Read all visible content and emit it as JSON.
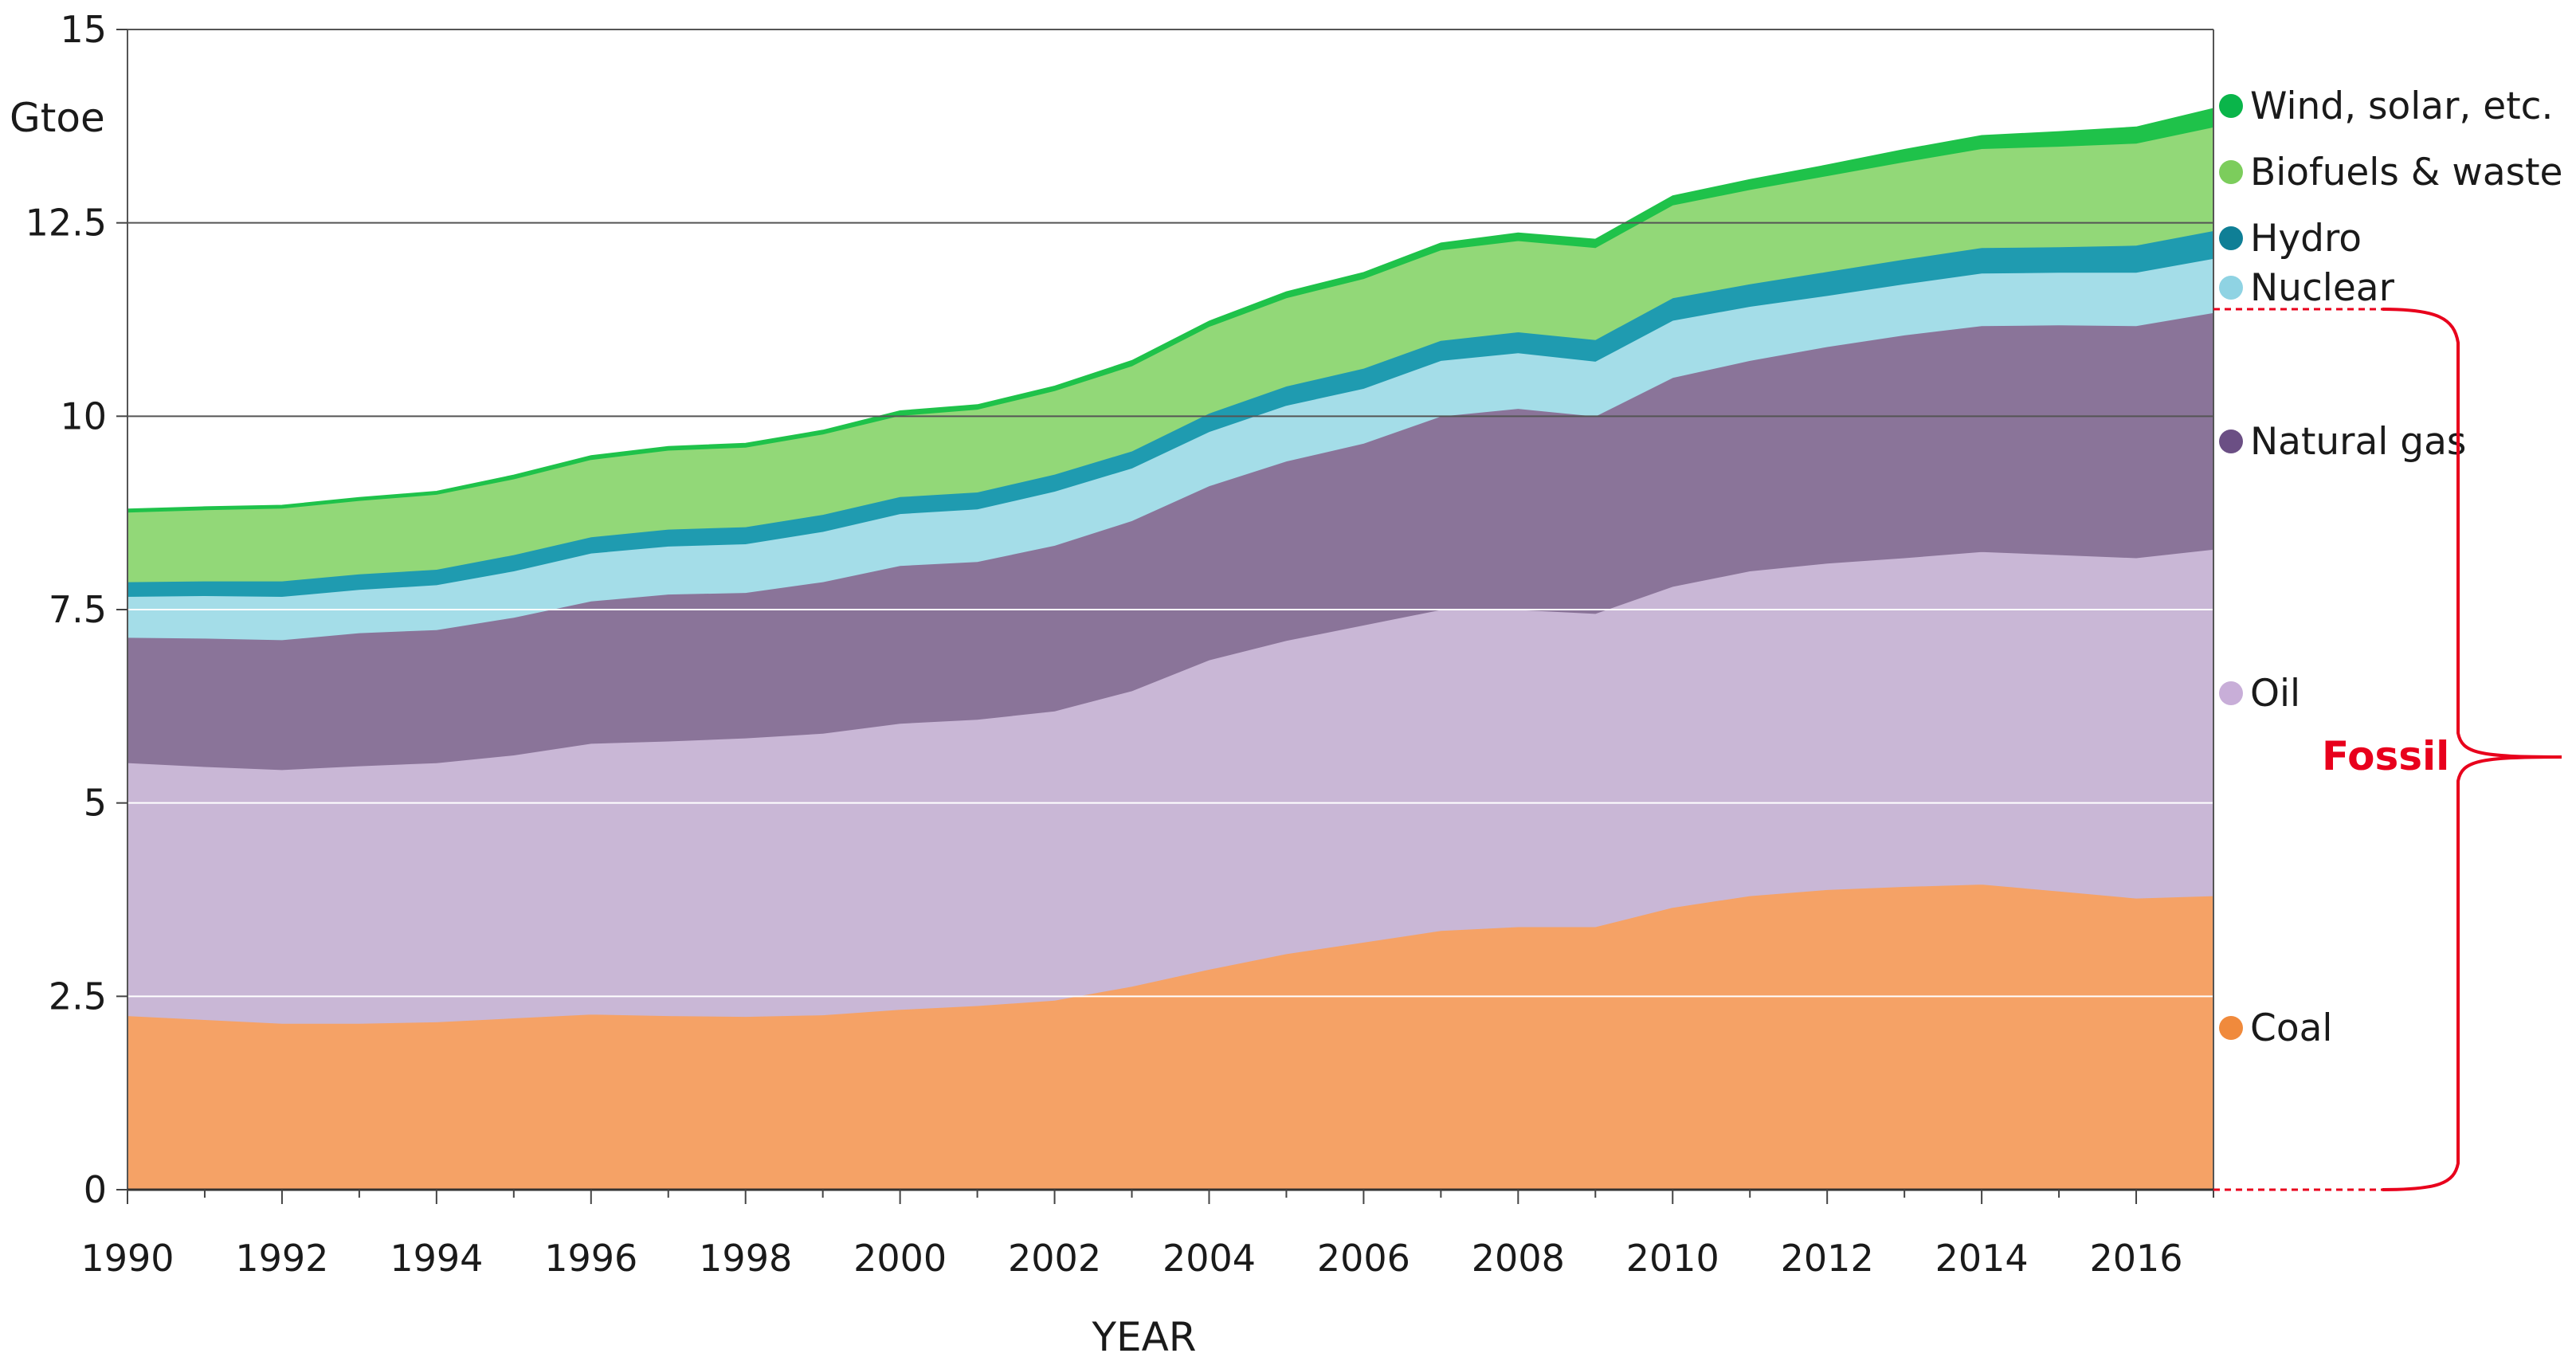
{
  "chart_data": {
    "type": "area",
    "stacked": true,
    "title": "",
    "xlabel": "YEAR",
    "ylabel": "Gtoe",
    "xlim": [
      1990,
      2017
    ],
    "ylim": [
      0,
      15
    ],
    "x": [
      1990,
      1991,
      1992,
      1993,
      1994,
      1995,
      1996,
      1997,
      1998,
      1999,
      2000,
      2001,
      2002,
      2003,
      2004,
      2005,
      2006,
      2007,
      2008,
      2009,
      2010,
      2011,
      2012,
      2013,
      2014,
      2015,
      2016,
      2017
    ],
    "xticks": [
      "1990",
      "1992",
      "1994",
      "1996",
      "1998",
      "2000",
      "2002",
      "2004",
      "2006",
      "2008",
      "2010",
      "2012",
      "2014",
      "2016"
    ],
    "xtick_values": [
      1990,
      1992,
      1994,
      1996,
      1998,
      2000,
      2002,
      2004,
      2006,
      2008,
      2010,
      2012,
      2014,
      2016
    ],
    "yticks": [
      "0",
      "2.5",
      "5",
      "7.5",
      "10",
      "12.5",
      "15"
    ],
    "ytick_values": [
      0,
      2.5,
      5,
      7.5,
      10,
      12.5,
      15
    ],
    "series": [
      {
        "name": "Coal",
        "color": "#f5a266",
        "legend_color": "#f08a3c",
        "values": [
          2.25,
          2.2,
          2.15,
          2.15,
          2.17,
          2.22,
          2.27,
          2.25,
          2.24,
          2.26,
          2.33,
          2.38,
          2.45,
          2.63,
          2.85,
          3.05,
          3.2,
          3.35,
          3.4,
          3.4,
          3.65,
          3.8,
          3.88,
          3.92,
          3.95,
          3.86,
          3.77,
          3.8
        ]
      },
      {
        "name": "Oil",
        "color": "#c9b7d6",
        "legend_color": "#c8aed8",
        "values": [
          3.27,
          3.27,
          3.28,
          3.33,
          3.35,
          3.4,
          3.5,
          3.55,
          3.6,
          3.64,
          3.7,
          3.7,
          3.74,
          3.82,
          4.0,
          4.05,
          4.1,
          4.15,
          4.1,
          4.05,
          4.15,
          4.2,
          4.22,
          4.25,
          4.3,
          4.35,
          4.4,
          4.48
        ]
      },
      {
        "name": "Natural gas",
        "color": "#8a7499",
        "legend_color": "#6b4f84",
        "values": [
          1.62,
          1.66,
          1.68,
          1.72,
          1.72,
          1.78,
          1.84,
          1.9,
          1.88,
          1.96,
          2.04,
          2.04,
          2.14,
          2.2,
          2.25,
          2.32,
          2.35,
          2.5,
          2.6,
          2.55,
          2.7,
          2.72,
          2.8,
          2.88,
          2.92,
          2.97,
          3.0,
          3.06
        ]
      },
      {
        "name": "Nuclear",
        "color": "#a4dde8",
        "legend_color": "#8fd3e3",
        "values": [
          0.53,
          0.55,
          0.56,
          0.56,
          0.58,
          0.6,
          0.62,
          0.62,
          0.63,
          0.65,
          0.67,
          0.68,
          0.7,
          0.68,
          0.7,
          0.72,
          0.71,
          0.72,
          0.72,
          0.71,
          0.74,
          0.7,
          0.66,
          0.66,
          0.68,
          0.68,
          0.69,
          0.7
        ]
      },
      {
        "name": "Hydro",
        "color": "#1f9bb0",
        "legend_color": "#0f7f96",
        "values": [
          0.19,
          0.19,
          0.2,
          0.2,
          0.2,
          0.21,
          0.21,
          0.22,
          0.22,
          0.22,
          0.22,
          0.22,
          0.22,
          0.22,
          0.24,
          0.25,
          0.26,
          0.26,
          0.27,
          0.28,
          0.29,
          0.29,
          0.31,
          0.32,
          0.33,
          0.33,
          0.35,
          0.36
        ]
      },
      {
        "name": "Biofuels & waste",
        "color": "#92d878",
        "legend_color": "#7ccd5c",
        "values": [
          0.9,
          0.92,
          0.94,
          0.95,
          0.97,
          0.98,
          1.0,
          1.02,
          1.03,
          1.04,
          1.05,
          1.07,
          1.08,
          1.1,
          1.12,
          1.14,
          1.16,
          1.17,
          1.18,
          1.19,
          1.2,
          1.22,
          1.24,
          1.26,
          1.28,
          1.3,
          1.32,
          1.34
        ]
      },
      {
        "name": "Wind, solar, etc.",
        "color": "#1fc24a",
        "legend_color": "#0ab54a",
        "values": [
          0.04,
          0.04,
          0.04,
          0.04,
          0.04,
          0.05,
          0.05,
          0.05,
          0.05,
          0.05,
          0.06,
          0.06,
          0.06,
          0.07,
          0.07,
          0.08,
          0.08,
          0.09,
          0.1,
          0.11,
          0.12,
          0.13,
          0.14,
          0.16,
          0.17,
          0.19,
          0.21,
          0.24
        ]
      }
    ],
    "legend_order": [
      "Wind, solar, etc.",
      "Biofuels & waste",
      "Hydro",
      "Nuclear",
      "Natural gas",
      "Oil",
      "Coal"
    ],
    "annotation": {
      "text": "Fossil",
      "color": "#e8001c",
      "groups": [
        "Coal",
        "Oil",
        "Natural gas"
      ]
    },
    "grid": true,
    "legend_position": "right"
  }
}
